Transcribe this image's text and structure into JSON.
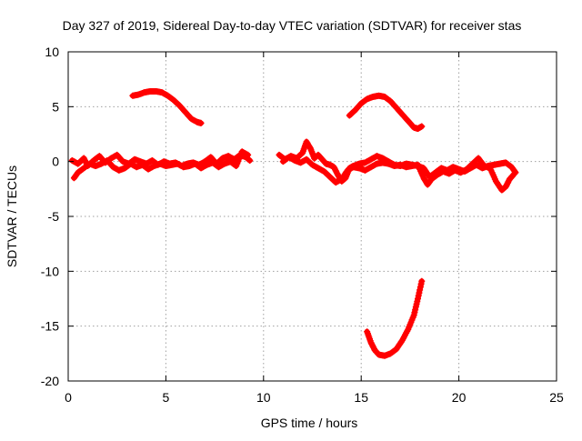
{
  "chart_data": {
    "type": "scatter",
    "title": "Day 327 of 2019, Sidereal Day-to-day VTEC variation (SDTVAR) for receiver stas",
    "xlabel": "GPS time / hours",
    "ylabel": "SDTVAR / TECUs",
    "xlim": [
      0,
      25
    ],
    "ylim": [
      -20,
      10
    ],
    "x_ticks": [
      0,
      5,
      10,
      15,
      20,
      25
    ],
    "x_tick_labels": [
      "0",
      "5",
      "10",
      "15",
      "20",
      "25"
    ],
    "y_ticks": [
      -20,
      -15,
      -10,
      -5,
      0,
      5,
      10
    ],
    "y_tick_labels": [
      "-20",
      "-15",
      "-10",
      "-5",
      "0",
      "5",
      "10"
    ],
    "grid": true,
    "series_color": "#ff0000",
    "series": [
      {
        "name": "arc-baseline-1",
        "points": [
          [
            0.2,
            0.1
          ],
          [
            0.5,
            -0.2
          ],
          [
            0.8,
            0.3
          ],
          [
            1.0,
            -0.4
          ],
          [
            1.3,
            0.1
          ],
          [
            1.6,
            0.5
          ],
          [
            1.9,
            -0.1
          ],
          [
            2.2,
            0.3
          ],
          [
            2.5,
            0.6
          ],
          [
            2.8,
            0.0
          ],
          [
            3.1,
            -0.2
          ],
          [
            3.4,
            0.2
          ],
          [
            3.7,
            0.0
          ],
          [
            4.0,
            -0.2
          ],
          [
            4.3,
            0.1
          ],
          [
            4.6,
            -0.3
          ],
          [
            4.9,
            0.0
          ],
          [
            5.2,
            -0.2
          ],
          [
            5.5,
            -0.1
          ],
          [
            5.8,
            -0.4
          ],
          [
            6.1,
            -0.2
          ],
          [
            6.4,
            -0.1
          ],
          [
            6.7,
            -0.3
          ],
          [
            7.0,
            0.0
          ],
          [
            7.3,
            0.4
          ],
          [
            7.6,
            -0.2
          ],
          [
            7.9,
            0.3
          ],
          [
            8.2,
            0.5
          ],
          [
            8.5,
            0.2
          ],
          [
            8.8,
            0.6
          ],
          [
            9.1,
            0.4
          ],
          [
            9.3,
            0.1
          ]
        ]
      },
      {
        "name": "arc-baseline-2",
        "points": [
          [
            0.3,
            -1.5
          ],
          [
            0.5,
            -1.0
          ],
          [
            0.8,
            -0.6
          ],
          [
            1.1,
            -0.2
          ],
          [
            1.4,
            -0.4
          ],
          [
            1.7,
            -0.2
          ],
          [
            2.0,
            0.1
          ],
          [
            2.3,
            -0.5
          ],
          [
            2.6,
            -0.8
          ],
          [
            2.9,
            -0.6
          ],
          [
            3.2,
            -0.2
          ],
          [
            3.5,
            -0.5
          ],
          [
            3.8,
            -0.3
          ],
          [
            4.1,
            -0.7
          ],
          [
            4.4,
            -0.4
          ],
          [
            4.7,
            -0.2
          ],
          [
            5.0,
            -0.4
          ],
          [
            5.3,
            -0.3
          ],
          [
            5.6,
            -0.2
          ],
          [
            5.9,
            -0.5
          ],
          [
            6.2,
            -0.4
          ],
          [
            6.5,
            -0.2
          ],
          [
            6.8,
            -0.6
          ],
          [
            7.1,
            -0.3
          ],
          [
            7.4,
            -0.1
          ],
          [
            7.7,
            -0.5
          ],
          [
            8.0,
            -0.2
          ],
          [
            8.3,
            0.0
          ],
          [
            8.6,
            -0.4
          ],
          [
            8.9,
            0.9
          ],
          [
            9.2,
            0.6
          ]
        ]
      },
      {
        "name": "arc-peak-1",
        "points": [
          [
            3.3,
            6.0
          ],
          [
            3.6,
            6.1
          ],
          [
            3.9,
            6.3
          ],
          [
            4.2,
            6.4
          ],
          [
            4.5,
            6.4
          ],
          [
            4.8,
            6.3
          ],
          [
            5.1,
            6.0
          ],
          [
            5.4,
            5.6
          ],
          [
            5.7,
            5.1
          ],
          [
            6.0,
            4.5
          ],
          [
            6.3,
            3.9
          ],
          [
            6.6,
            3.6
          ],
          [
            6.8,
            3.5
          ]
        ]
      },
      {
        "name": "arc-baseline-3",
        "points": [
          [
            10.8,
            0.6
          ],
          [
            11.1,
            0.2
          ],
          [
            11.4,
            0.5
          ],
          [
            11.7,
            0.3
          ],
          [
            12.0,
            0.8
          ],
          [
            12.2,
            1.8
          ],
          [
            12.4,
            1.2
          ],
          [
            12.6,
            0.3
          ],
          [
            12.8,
            0.6
          ],
          [
            13.0,
            0.2
          ],
          [
            13.2,
            -0.2
          ],
          [
            13.4,
            -0.3
          ],
          [
            13.6,
            -0.5
          ],
          [
            13.8,
            -1.2
          ],
          [
            14.0,
            -1.8
          ],
          [
            14.2,
            -1.5
          ],
          [
            14.4,
            -0.6
          ],
          [
            14.6,
            -0.4
          ],
          [
            14.9,
            -0.2
          ],
          [
            15.2,
            -0.1
          ],
          [
            15.5,
            0.2
          ],
          [
            15.8,
            0.5
          ],
          [
            16.1,
            0.3
          ],
          [
            16.4,
            0.0
          ],
          [
            16.7,
            -0.3
          ],
          [
            17.0,
            -0.4
          ],
          [
            17.3,
            -0.2
          ],
          [
            17.6,
            -0.3
          ],
          [
            17.9,
            -0.4
          ],
          [
            18.2,
            -0.6
          ],
          [
            18.5,
            -1.4
          ],
          [
            18.8,
            -1.0
          ],
          [
            19.1,
            -0.6
          ],
          [
            19.4,
            -0.8
          ],
          [
            19.7,
            -0.5
          ],
          [
            20.0,
            -0.7
          ],
          [
            20.3,
            -0.9
          ],
          [
            20.6,
            -0.6
          ],
          [
            20.9,
            -0.3
          ],
          [
            21.2,
            -0.6
          ],
          [
            21.5,
            -0.4
          ],
          [
            21.8,
            -0.3
          ],
          [
            22.1,
            -0.2
          ],
          [
            22.4,
            -0.1
          ],
          [
            22.7,
            -0.5
          ],
          [
            22.9,
            -1.0
          ]
        ]
      },
      {
        "name": "arc-baseline-4",
        "points": [
          [
            11.0,
            0.0
          ],
          [
            11.3,
            0.4
          ],
          [
            11.6,
            0.1
          ],
          [
            11.9,
            -0.1
          ],
          [
            12.2,
            0.2
          ],
          [
            12.5,
            -0.3
          ],
          [
            12.8,
            -0.6
          ],
          [
            13.1,
            -0.9
          ],
          [
            13.4,
            -1.4
          ],
          [
            13.7,
            -1.9
          ],
          [
            14.0,
            -1.6
          ],
          [
            14.3,
            -0.8
          ],
          [
            14.6,
            -0.5
          ],
          [
            14.9,
            -0.6
          ],
          [
            15.2,
            -0.8
          ],
          [
            15.5,
            -0.5
          ],
          [
            15.8,
            -0.2
          ],
          [
            16.1,
            -0.1
          ],
          [
            16.4,
            -0.2
          ],
          [
            16.7,
            -0.4
          ],
          [
            17.0,
            -0.3
          ],
          [
            17.3,
            -0.5
          ],
          [
            17.6,
            -0.4
          ],
          [
            17.9,
            -0.3
          ],
          [
            18.2,
            -1.5
          ],
          [
            18.4,
            -2.1
          ],
          [
            18.6,
            -1.6
          ],
          [
            18.9,
            -1.2
          ],
          [
            19.2,
            -0.9
          ],
          [
            19.5,
            -1.1
          ],
          [
            19.8,
            -0.8
          ],
          [
            20.1,
            -1.0
          ],
          [
            20.4,
            -0.7
          ],
          [
            20.7,
            -0.2
          ],
          [
            21.0,
            0.3
          ],
          [
            21.3,
            -0.4
          ],
          [
            21.6,
            -0.6
          ],
          [
            21.9,
            -1.8
          ],
          [
            22.2,
            -2.6
          ],
          [
            22.4,
            -2.3
          ],
          [
            22.6,
            -1.6
          ],
          [
            22.8,
            -1.2
          ]
        ]
      },
      {
        "name": "arc-peak-2",
        "points": [
          [
            14.4,
            4.2
          ],
          [
            14.7,
            4.7
          ],
          [
            15.0,
            5.3
          ],
          [
            15.3,
            5.7
          ],
          [
            15.6,
            5.9
          ],
          [
            15.9,
            6.0
          ],
          [
            16.2,
            5.9
          ],
          [
            16.5,
            5.5
          ],
          [
            16.8,
            4.9
          ],
          [
            17.1,
            4.3
          ],
          [
            17.4,
            3.7
          ],
          [
            17.7,
            3.1
          ],
          [
            17.9,
            3.0
          ],
          [
            18.1,
            3.2
          ]
        ]
      },
      {
        "name": "arc-trough",
        "points": [
          [
            15.3,
            -15.5
          ],
          [
            15.5,
            -16.5
          ],
          [
            15.7,
            -17.2
          ],
          [
            15.9,
            -17.6
          ],
          [
            16.2,
            -17.7
          ],
          [
            16.5,
            -17.5
          ],
          [
            16.8,
            -17.1
          ],
          [
            17.1,
            -16.3
          ],
          [
            17.4,
            -15.3
          ],
          [
            17.7,
            -14.0
          ],
          [
            17.9,
            -12.5
          ],
          [
            18.1,
            -10.9
          ]
        ]
      }
    ]
  }
}
